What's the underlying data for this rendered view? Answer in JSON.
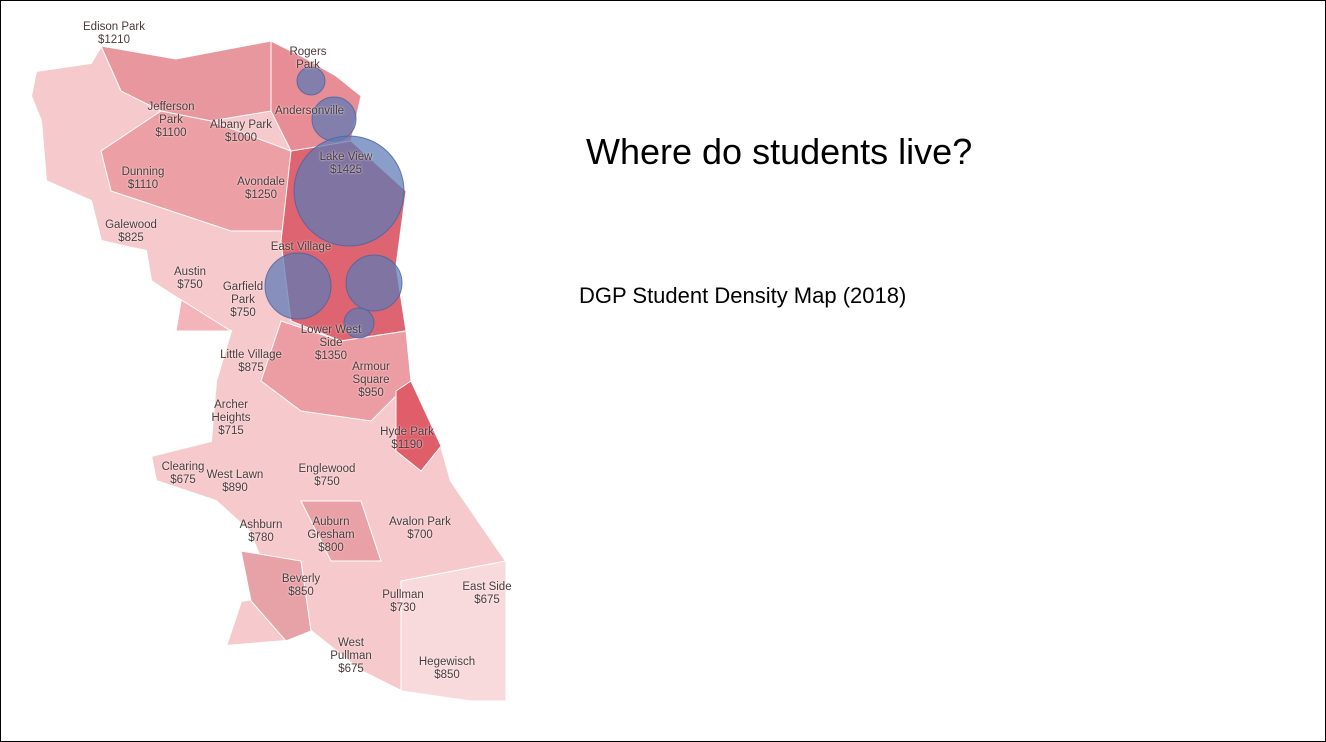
{
  "slide": {
    "title": "Where do students live?",
    "subtitle": "DGP Student Density Map (2018)"
  },
  "map": {
    "labels": [
      {
        "name": "Edison Park",
        "rent": "$1210"
      },
      {
        "name": "Rogers Park",
        "rent": null
      },
      {
        "name": "Jefferson Park",
        "rent": "$1100"
      },
      {
        "name": "Andersonville",
        "rent": null
      },
      {
        "name": "Albany Park",
        "rent": "$1000"
      },
      {
        "name": "Dunning",
        "rent": "$1110"
      },
      {
        "name": "Avondale",
        "rent": "$1250"
      },
      {
        "name": "Lake View",
        "rent": "$1425"
      },
      {
        "name": "Galewood",
        "rent": "$825"
      },
      {
        "name": "East Village",
        "rent": null
      },
      {
        "name": "Austin",
        "rent": "$750"
      },
      {
        "name": "Garfield Park",
        "rent": "$750"
      },
      {
        "name": "Lower West Side",
        "rent": "$1350"
      },
      {
        "name": "Little Village",
        "rent": "$875"
      },
      {
        "name": "Armour Square",
        "rent": "$950"
      },
      {
        "name": "Archer Heights",
        "rent": "$715"
      },
      {
        "name": "Hyde Park",
        "rent": "$1190"
      },
      {
        "name": "Clearing",
        "rent": "$675"
      },
      {
        "name": "West Lawn",
        "rent": "$890"
      },
      {
        "name": "Englewood",
        "rent": "$750"
      },
      {
        "name": "Ashburn",
        "rent": "$780"
      },
      {
        "name": "Auburn Gresham",
        "rent": "$800"
      },
      {
        "name": "Avalon Park",
        "rent": "$700"
      },
      {
        "name": "Beverly",
        "rent": "$850"
      },
      {
        "name": "Pullman",
        "rent": "$730"
      },
      {
        "name": "East Side",
        "rent": "$675"
      },
      {
        "name": "West Pullman",
        "rent": "$675"
      },
      {
        "name": "Hegewisch",
        "rent": "$850"
      }
    ]
  }
}
